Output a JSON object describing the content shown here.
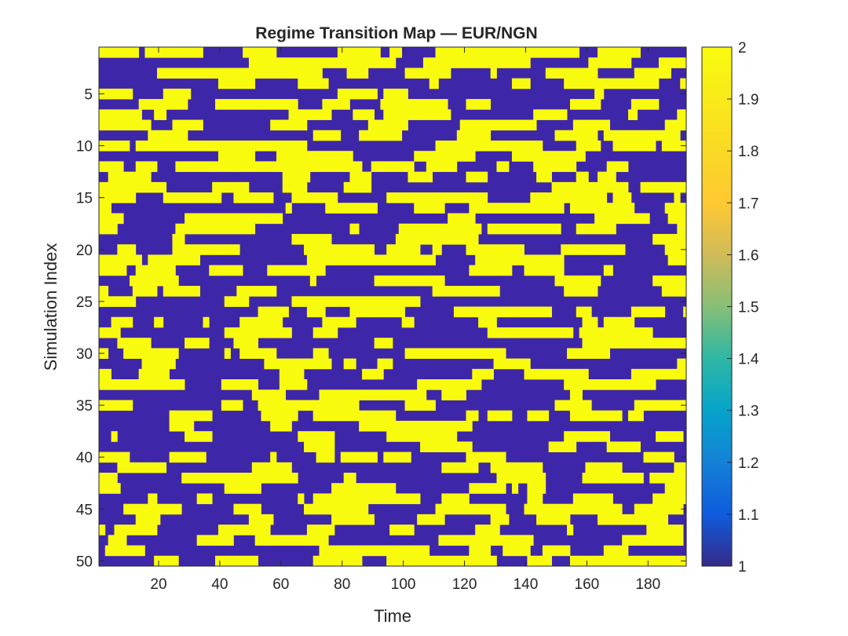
{
  "chart_data": {
    "type": "heatmap",
    "title": "Regime Transition Map — EUR/NGN",
    "xlabel": "Time",
    "ylabel": "Simulation Index",
    "x_range": [
      1,
      192
    ],
    "y_range": [
      1,
      50
    ],
    "x_ticks": [
      20,
      40,
      60,
      80,
      100,
      120,
      140,
      160,
      180
    ],
    "y_ticks": [
      5,
      10,
      15,
      20,
      25,
      30,
      35,
      40,
      45,
      50
    ],
    "colorbar": {
      "range": [
        1,
        2
      ],
      "ticks": [
        "1",
        "1.1",
        "1.2",
        "1.3",
        "1.4",
        "1.5",
        "1.6",
        "1.7",
        "1.8",
        "1.9",
        "2"
      ],
      "colormap": "parula"
    },
    "value_colors": {
      "1": "#3e26a8",
      "2": "#f9fb0e"
    },
    "regimes": [
      1,
      2
    ],
    "grid": false,
    "rows_count": 50,
    "cols_count": 192,
    "grid_seed": 20240611,
    "regime2_fraction": 0.45
  }
}
